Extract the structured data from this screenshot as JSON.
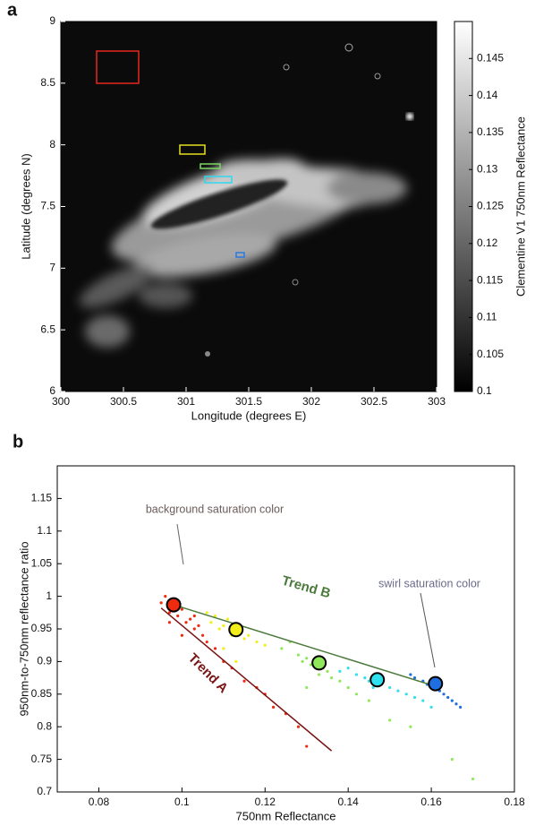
{
  "chart_data": [
    {
      "type": "image",
      "panel": "a",
      "xlabel": "Longitude (degrees E)",
      "ylabel": "Latitude (degrees N)",
      "xlim": [
        300,
        303
      ],
      "xticks": [
        300,
        300.5,
        301,
        301.5,
        302,
        302.5,
        303
      ],
      "ylim": [
        6,
        9
      ],
      "yticks": [
        6,
        6.5,
        7,
        7.5,
        8,
        8.5,
        9
      ],
      "colorbar": {
        "label": "Clementine V1 750nm Reflectance",
        "clim": [
          0.1,
          0.15
        ],
        "ticks": [
          0.1,
          0.105,
          0.11,
          0.115,
          0.12,
          0.125,
          0.13,
          0.135,
          0.14,
          0.145
        ]
      }
    },
    {
      "type": "scatter",
      "panel": "b",
      "xlabel": "750nm Reflectance",
      "ylabel": "950nm-to-750nm reflectance ratio",
      "xlim": [
        0.07,
        0.18
      ],
      "xticks": [
        0.08,
        0.1,
        0.12,
        0.14,
        0.16,
        0.18
      ],
      "ylim": [
        0.7,
        1.2
      ],
      "yticks": [
        0.7,
        0.75,
        0.8,
        0.85,
        0.9,
        0.95,
        1,
        1.05,
        1.1,
        1.15
      ],
      "series": [
        {
          "color": "#ee2a0f",
          "x": [
            0.095,
            0.096,
            0.097,
            0.098,
            0.099,
            0.1,
            0.101,
            0.102,
            0.103,
            0.104,
            0.105,
            0.106,
            0.108,
            0.11,
            0.112,
            0.115,
            0.118,
            0.12,
            0.122,
            0.125,
            0.128,
            0.13,
            0.097,
            0.1,
            0.103
          ],
          "values": [
            0.99,
            1.0,
            0.975,
            0.985,
            0.97,
            0.98,
            0.96,
            0.965,
            0.95,
            0.955,
            0.94,
            0.93,
            0.92,
            0.9,
            0.89,
            0.87,
            0.86,
            0.85,
            0.83,
            0.82,
            0.8,
            0.77,
            0.96,
            0.94,
            0.97
          ]
        },
        {
          "color": "#f2ee1a",
          "x": [
            0.106,
            0.107,
            0.108,
            0.109,
            0.11,
            0.111,
            0.112,
            0.113,
            0.114,
            0.115,
            0.116,
            0.118,
            0.12,
            0.11,
            0.113
          ],
          "values": [
            0.975,
            0.96,
            0.97,
            0.95,
            0.955,
            0.965,
            0.94,
            0.945,
            0.95,
            0.935,
            0.94,
            0.93,
            0.925,
            0.92,
            0.9
          ]
        },
        {
          "color": "#8fe85a",
          "x": [
            0.124,
            0.126,
            0.128,
            0.129,
            0.13,
            0.131,
            0.132,
            0.133,
            0.134,
            0.135,
            0.136,
            0.138,
            0.14,
            0.142,
            0.145,
            0.15,
            0.155,
            0.165,
            0.17,
            0.13
          ],
          "values": [
            0.92,
            0.93,
            0.91,
            0.9,
            0.905,
            0.895,
            0.9,
            0.88,
            0.89,
            0.885,
            0.875,
            0.87,
            0.86,
            0.85,
            0.84,
            0.81,
            0.8,
            0.75,
            0.72,
            0.86
          ]
        },
        {
          "color": "#2fe0ee",
          "x": [
            0.138,
            0.14,
            0.142,
            0.144,
            0.145,
            0.146,
            0.147,
            0.148,
            0.15,
            0.152,
            0.154,
            0.156,
            0.158,
            0.16
          ],
          "values": [
            0.885,
            0.89,
            0.88,
            0.875,
            0.87,
            0.86,
            0.875,
            0.865,
            0.86,
            0.855,
            0.85,
            0.845,
            0.84,
            0.83
          ]
        },
        {
          "color": "#1f6fe0",
          "x": [
            0.155,
            0.156,
            0.158,
            0.159,
            0.16,
            0.161,
            0.162,
            0.163,
            0.164,
            0.165,
            0.166,
            0.167
          ],
          "values": [
            0.88,
            0.875,
            0.87,
            0.865,
            0.87,
            0.86,
            0.855,
            0.85,
            0.845,
            0.84,
            0.835,
            0.83
          ]
        }
      ],
      "means": {
        "x": [
          0.098,
          0.113,
          0.133,
          0.147,
          0.161
        ],
        "values": [
          0.987,
          0.949,
          0.898,
          0.872,
          0.866
        ],
        "colors": [
          "#ee2a0f",
          "#f2ee1a",
          "#8fe85a",
          "#2fe0ee",
          "#1f6fe0"
        ]
      },
      "lines": [
        {
          "label": "Trend A",
          "color": "#7a1414",
          "x": [
            0.095,
            0.136
          ],
          "values": [
            0.982,
            0.763
          ]
        },
        {
          "label": "Trend B",
          "color": "#4c7a3c",
          "x": [
            0.098,
            0.161
          ],
          "values": [
            0.987,
            0.862
          ]
        }
      ],
      "annotations": [
        {
          "text": "background saturation color"
        },
        {
          "text": "swirl saturation color"
        }
      ]
    }
  ]
}
